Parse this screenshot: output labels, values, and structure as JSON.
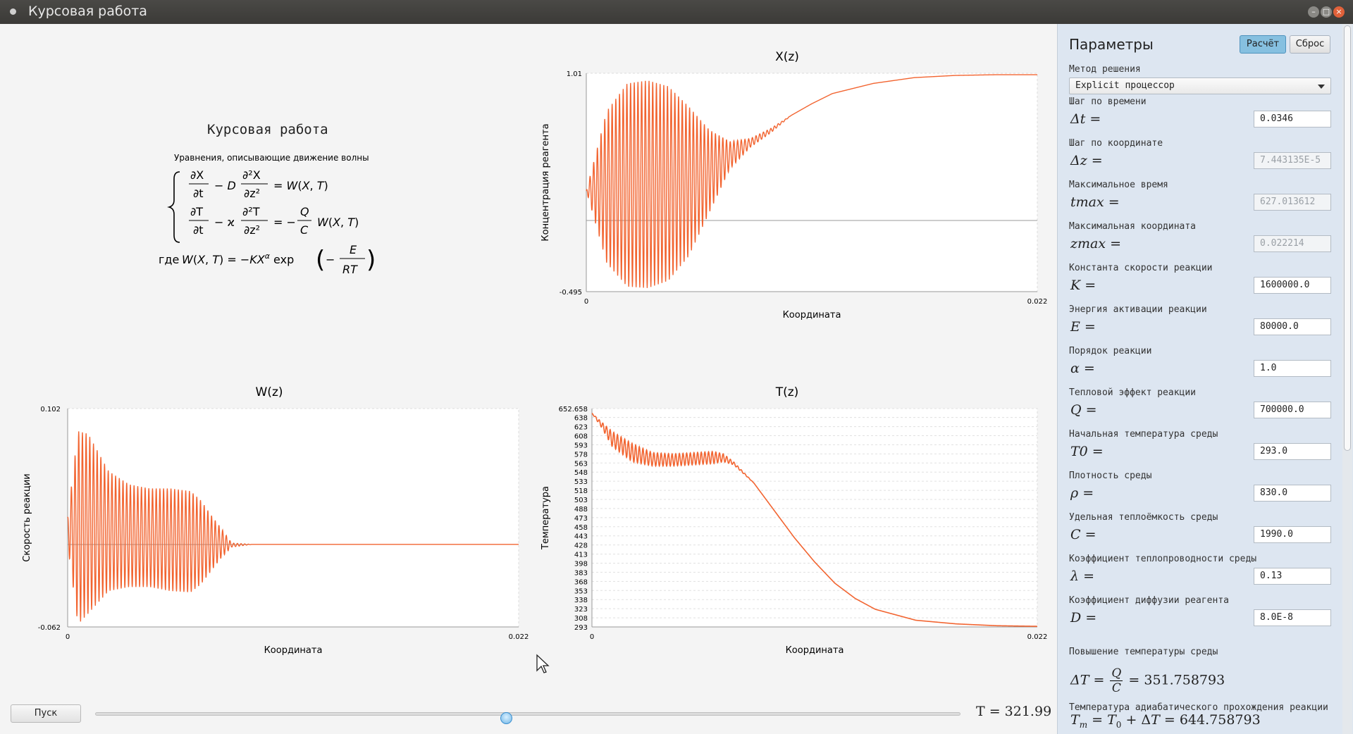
{
  "window": {
    "title": "Курсовая работа"
  },
  "formula": {
    "title": "Курсовая работа",
    "caption": "Уравнения, описывающие движение волны",
    "where": "где"
  },
  "charts": {
    "x": {
      "title": "X(z)",
      "ylabel": "Концентрация реагента",
      "xlabel": "Координата",
      "ymax": "1.01",
      "ymin": "-0.495",
      "xmin": "0",
      "xmax": "0.022"
    },
    "w": {
      "title": "W(z)",
      "ylabel": "Скорость реакции",
      "xlabel": "Координата",
      "ymax": "0.102",
      "ymin": "-0.062",
      "xmin": "0",
      "xmax": "0.022"
    },
    "t": {
      "title": "T(z)",
      "ylabel": "Температура",
      "xlabel": "Координата",
      "ymax": "652.658",
      "xmin": "0",
      "xmax": "0.022"
    }
  },
  "chart_data": [
    {
      "type": "line",
      "title": "X(z)",
      "xlabel": "Координата",
      "ylabel": "Концентрация реагента",
      "xlim": [
        0,
        0.022
      ],
      "ylim": [
        -0.495,
        1.01
      ],
      "x": [
        0,
        0.001,
        0.002,
        0.003,
        0.004,
        0.005,
        0.006,
        0.007,
        0.008,
        0.009,
        0.01,
        0.011,
        0.012,
        0.014,
        0.016,
        0.018,
        0.02,
        0.022
      ],
      "upper": [
        0.2,
        0.75,
        0.94,
        0.96,
        0.92,
        0.78,
        0.62,
        0.54,
        0.56,
        0.63,
        0.72,
        0.8,
        0.87,
        0.94,
        0.98,
        0.995,
        1.0,
        1.0
      ],
      "lower": [
        0.2,
        -0.3,
        -0.46,
        -0.47,
        -0.42,
        -0.25,
        0.05,
        0.35,
        0.5,
        0.6,
        0.72,
        0.8,
        0.87,
        0.94,
        0.98,
        0.995,
        1.0,
        1.0
      ]
    },
    {
      "type": "line",
      "title": "W(z)",
      "xlabel": "Координата",
      "ylabel": "Скорость реакции",
      "xlim": [
        0,
        0.022
      ],
      "ylim": [
        -0.062,
        0.102
      ],
      "x": [
        0,
        0.0005,
        0.001,
        0.002,
        0.003,
        0.004,
        0.005,
        0.006,
        0.0065,
        0.007,
        0.0075,
        0.008,
        0.009,
        0.01,
        0.012,
        0.016,
        0.022
      ],
      "upper": [
        0.02,
        0.085,
        0.083,
        0.055,
        0.045,
        0.042,
        0.042,
        0.04,
        0.033,
        0.022,
        0.012,
        0.001,
        0.0,
        0.0,
        0.0,
        0.0,
        0.0
      ],
      "lower": [
        0.0,
        -0.06,
        -0.052,
        -0.035,
        -0.032,
        -0.032,
        -0.035,
        -0.036,
        -0.03,
        -0.02,
        -0.01,
        -0.002,
        0.0,
        0.0,
        0.0,
        0.0,
        0.0
      ]
    },
    {
      "type": "line",
      "title": "T(z)",
      "xlabel": "Координата",
      "ylabel": "Температура",
      "xlim": [
        0,
        0.022
      ],
      "ylim": [
        293,
        652.658
      ],
      "yticks": [
        293,
        308,
        323,
        338,
        353,
        368,
        383,
        398,
        413,
        428,
        443,
        458,
        473,
        488,
        503,
        518,
        533,
        548,
        563,
        578,
        593,
        608,
        623,
        638,
        652.658
      ],
      "x": [
        0,
        0.0005,
        0.001,
        0.002,
        0.003,
        0.004,
        0.005,
        0.006,
        0.0065,
        0.007,
        0.008,
        0.009,
        0.01,
        0.011,
        0.012,
        0.013,
        0.014,
        0.016,
        0.018,
        0.02,
        0.022
      ],
      "upper": [
        645,
        630,
        615,
        595,
        580,
        578,
        580,
        582,
        578,
        565,
        530,
        485,
        440,
        400,
        365,
        340,
        322,
        304,
        298,
        295,
        294
      ],
      "lower": [
        645,
        620,
        590,
        565,
        558,
        558,
        560,
        562,
        565,
        560,
        530,
        485,
        440,
        400,
        365,
        340,
        322,
        304,
        298,
        295,
        294
      ]
    }
  ],
  "bottom": {
    "run_label": "Пуск",
    "slider_value": 0.4746,
    "time_text": "T = 321.99"
  },
  "panel": {
    "title": "Параметры",
    "calc_label": "Расчёт",
    "reset_label": "Сброс",
    "method_label": "Метод решения",
    "method_value": "Explicit процессор",
    "params": [
      {
        "label": "Шаг по времени",
        "symbol": "Δt =",
        "value": "0.0346",
        "readonly": false
      },
      {
        "label": "Шаг по координате",
        "symbol": "Δz =",
        "value": "7.443135E-5",
        "readonly": true
      },
      {
        "label": "Максимальное время",
        "symbol": "tmax =",
        "value": "627.013612",
        "readonly": true
      },
      {
        "label": "Максимальная координата",
        "symbol": "zmax =",
        "value": "0.022214",
        "readonly": true
      },
      {
        "label": "Константа скорости реакции",
        "symbol": "K =",
        "value": "1600000.0",
        "readonly": false
      },
      {
        "label": "Энергия активации реакции",
        "symbol": "E =",
        "value": "80000.0",
        "readonly": false
      },
      {
        "label": "Порядок реакции",
        "symbol": "α =",
        "value": "1.0",
        "readonly": false
      },
      {
        "label": "Тепловой эффект реакции",
        "symbol": "Q =",
        "value": "700000.0",
        "readonly": false
      },
      {
        "label": "Начальная температура среды",
        "symbol": "T0 =",
        "value": "293.0",
        "readonly": false
      },
      {
        "label": "Плотность среды",
        "symbol": "ρ =",
        "value": "830.0",
        "readonly": false
      },
      {
        "label": "Удельная теплоёмкость среды",
        "symbol": "C =",
        "value": "1990.0",
        "readonly": false
      },
      {
        "label": "Коэффициент теплопроводности среды",
        "symbol": "λ =",
        "value": "0.13",
        "readonly": false
      },
      {
        "label": "Коэффициент диффузии реагента",
        "symbol": "D =",
        "value": "8.0E-8",
        "readonly": false
      }
    ],
    "delta_t_label": "Повышение температуры среды",
    "delta_t_value": "= 351.758793",
    "tm_label": "Температура адиабатического прохождения реакции",
    "tm_value": "= 644.758793"
  },
  "colors": {
    "curve": "#f26430",
    "panel": "#dde6f1",
    "accent": "#86c0e0"
  }
}
